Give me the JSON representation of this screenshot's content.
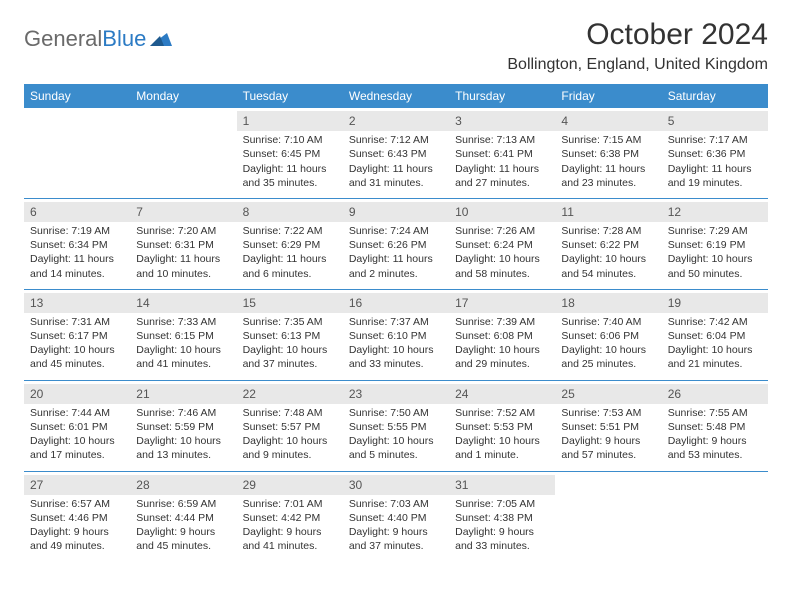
{
  "logo": {
    "text1": "General",
    "text2": "Blue"
  },
  "title": "October 2024",
  "location": "Bollington, England, United Kingdom",
  "colors": {
    "header_bg": "#3b8ccc",
    "header_text": "#ffffff",
    "row_border": "#3b8ccc",
    "daynum_bg": "#e8e8e8",
    "body_text": "#333333"
  },
  "weekdays": [
    "Sunday",
    "Monday",
    "Tuesday",
    "Wednesday",
    "Thursday",
    "Friday",
    "Saturday"
  ],
  "weeks": [
    [
      {
        "day": "",
        "sunrise": "",
        "sunset": "",
        "daylight": ""
      },
      {
        "day": "",
        "sunrise": "",
        "sunset": "",
        "daylight": ""
      },
      {
        "day": "1",
        "sunrise": "Sunrise: 7:10 AM",
        "sunset": "Sunset: 6:45 PM",
        "daylight": "Daylight: 11 hours and 35 minutes."
      },
      {
        "day": "2",
        "sunrise": "Sunrise: 7:12 AM",
        "sunset": "Sunset: 6:43 PM",
        "daylight": "Daylight: 11 hours and 31 minutes."
      },
      {
        "day": "3",
        "sunrise": "Sunrise: 7:13 AM",
        "sunset": "Sunset: 6:41 PM",
        "daylight": "Daylight: 11 hours and 27 minutes."
      },
      {
        "day": "4",
        "sunrise": "Sunrise: 7:15 AM",
        "sunset": "Sunset: 6:38 PM",
        "daylight": "Daylight: 11 hours and 23 minutes."
      },
      {
        "day": "5",
        "sunrise": "Sunrise: 7:17 AM",
        "sunset": "Sunset: 6:36 PM",
        "daylight": "Daylight: 11 hours and 19 minutes."
      }
    ],
    [
      {
        "day": "6",
        "sunrise": "Sunrise: 7:19 AM",
        "sunset": "Sunset: 6:34 PM",
        "daylight": "Daylight: 11 hours and 14 minutes."
      },
      {
        "day": "7",
        "sunrise": "Sunrise: 7:20 AM",
        "sunset": "Sunset: 6:31 PM",
        "daylight": "Daylight: 11 hours and 10 minutes."
      },
      {
        "day": "8",
        "sunrise": "Sunrise: 7:22 AM",
        "sunset": "Sunset: 6:29 PM",
        "daylight": "Daylight: 11 hours and 6 minutes."
      },
      {
        "day": "9",
        "sunrise": "Sunrise: 7:24 AM",
        "sunset": "Sunset: 6:26 PM",
        "daylight": "Daylight: 11 hours and 2 minutes."
      },
      {
        "day": "10",
        "sunrise": "Sunrise: 7:26 AM",
        "sunset": "Sunset: 6:24 PM",
        "daylight": "Daylight: 10 hours and 58 minutes."
      },
      {
        "day": "11",
        "sunrise": "Sunrise: 7:28 AM",
        "sunset": "Sunset: 6:22 PM",
        "daylight": "Daylight: 10 hours and 54 minutes."
      },
      {
        "day": "12",
        "sunrise": "Sunrise: 7:29 AM",
        "sunset": "Sunset: 6:19 PM",
        "daylight": "Daylight: 10 hours and 50 minutes."
      }
    ],
    [
      {
        "day": "13",
        "sunrise": "Sunrise: 7:31 AM",
        "sunset": "Sunset: 6:17 PM",
        "daylight": "Daylight: 10 hours and 45 minutes."
      },
      {
        "day": "14",
        "sunrise": "Sunrise: 7:33 AM",
        "sunset": "Sunset: 6:15 PM",
        "daylight": "Daylight: 10 hours and 41 minutes."
      },
      {
        "day": "15",
        "sunrise": "Sunrise: 7:35 AM",
        "sunset": "Sunset: 6:13 PM",
        "daylight": "Daylight: 10 hours and 37 minutes."
      },
      {
        "day": "16",
        "sunrise": "Sunrise: 7:37 AM",
        "sunset": "Sunset: 6:10 PM",
        "daylight": "Daylight: 10 hours and 33 minutes."
      },
      {
        "day": "17",
        "sunrise": "Sunrise: 7:39 AM",
        "sunset": "Sunset: 6:08 PM",
        "daylight": "Daylight: 10 hours and 29 minutes."
      },
      {
        "day": "18",
        "sunrise": "Sunrise: 7:40 AM",
        "sunset": "Sunset: 6:06 PM",
        "daylight": "Daylight: 10 hours and 25 minutes."
      },
      {
        "day": "19",
        "sunrise": "Sunrise: 7:42 AM",
        "sunset": "Sunset: 6:04 PM",
        "daylight": "Daylight: 10 hours and 21 minutes."
      }
    ],
    [
      {
        "day": "20",
        "sunrise": "Sunrise: 7:44 AM",
        "sunset": "Sunset: 6:01 PM",
        "daylight": "Daylight: 10 hours and 17 minutes."
      },
      {
        "day": "21",
        "sunrise": "Sunrise: 7:46 AM",
        "sunset": "Sunset: 5:59 PM",
        "daylight": "Daylight: 10 hours and 13 minutes."
      },
      {
        "day": "22",
        "sunrise": "Sunrise: 7:48 AM",
        "sunset": "Sunset: 5:57 PM",
        "daylight": "Daylight: 10 hours and 9 minutes."
      },
      {
        "day": "23",
        "sunrise": "Sunrise: 7:50 AM",
        "sunset": "Sunset: 5:55 PM",
        "daylight": "Daylight: 10 hours and 5 minutes."
      },
      {
        "day": "24",
        "sunrise": "Sunrise: 7:52 AM",
        "sunset": "Sunset: 5:53 PM",
        "daylight": "Daylight: 10 hours and 1 minute."
      },
      {
        "day": "25",
        "sunrise": "Sunrise: 7:53 AM",
        "sunset": "Sunset: 5:51 PM",
        "daylight": "Daylight: 9 hours and 57 minutes."
      },
      {
        "day": "26",
        "sunrise": "Sunrise: 7:55 AM",
        "sunset": "Sunset: 5:48 PM",
        "daylight": "Daylight: 9 hours and 53 minutes."
      }
    ],
    [
      {
        "day": "27",
        "sunrise": "Sunrise: 6:57 AM",
        "sunset": "Sunset: 4:46 PM",
        "daylight": "Daylight: 9 hours and 49 minutes."
      },
      {
        "day": "28",
        "sunrise": "Sunrise: 6:59 AM",
        "sunset": "Sunset: 4:44 PM",
        "daylight": "Daylight: 9 hours and 45 minutes."
      },
      {
        "day": "29",
        "sunrise": "Sunrise: 7:01 AM",
        "sunset": "Sunset: 4:42 PM",
        "daylight": "Daylight: 9 hours and 41 minutes."
      },
      {
        "day": "30",
        "sunrise": "Sunrise: 7:03 AM",
        "sunset": "Sunset: 4:40 PM",
        "daylight": "Daylight: 9 hours and 37 minutes."
      },
      {
        "day": "31",
        "sunrise": "Sunrise: 7:05 AM",
        "sunset": "Sunset: 4:38 PM",
        "daylight": "Daylight: 9 hours and 33 minutes."
      },
      {
        "day": "",
        "sunrise": "",
        "sunset": "",
        "daylight": ""
      },
      {
        "day": "",
        "sunrise": "",
        "sunset": "",
        "daylight": ""
      }
    ]
  ]
}
